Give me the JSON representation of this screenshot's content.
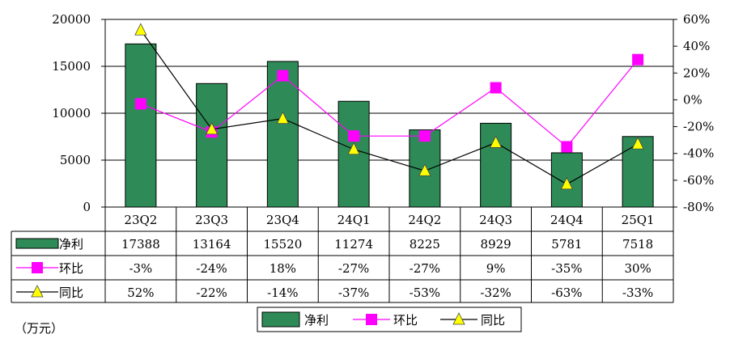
{
  "chart_data": {
    "type": "bar",
    "categories": [
      "23Q2",
      "23Q3",
      "23Q4",
      "24Q1",
      "24Q2",
      "24Q3",
      "24Q4",
      "25Q1"
    ],
    "y_left": {
      "min": 0,
      "max": 20000,
      "ticks": [
        "0",
        "5000",
        "10000",
        "15000",
        "20000"
      ]
    },
    "y_right": {
      "min": -80,
      "max": 60,
      "ticks": [
        "-80%",
        "-60%",
        "-40%",
        "-20%",
        "0%",
        "20%",
        "40%",
        "60%"
      ]
    },
    "series": [
      {
        "name": "净利",
        "type": "bar",
        "axis": "left",
        "color": "#2e8b57",
        "values": [
          17388,
          13164,
          15520,
          11274,
          8225,
          8929,
          5781,
          7518
        ],
        "labels": [
          "17388",
          "13164",
          "15520",
          "11274",
          "8225",
          "8929",
          "5781",
          "7518"
        ]
      },
      {
        "name": "环比",
        "type": "line",
        "axis": "right",
        "color": "#ff00ff",
        "marker": "square",
        "values": [
          -3,
          -24,
          18,
          -27,
          -27,
          9,
          -35,
          30
        ],
        "labels": [
          "-3%",
          "-24%",
          "18%",
          "-27%",
          "-27%",
          "9%",
          "-35%",
          "30%"
        ]
      },
      {
        "name": "同比",
        "type": "line",
        "axis": "right",
        "color": "#000000",
        "marker": "triangle",
        "marker_color": "#ffff00",
        "values": [
          52,
          -22,
          -14,
          -37,
          -53,
          -32,
          -63,
          -33
        ],
        "labels": [
          "52%",
          "-22%",
          "-14%",
          "-37%",
          "-53%",
          "-32%",
          "-63%",
          "-33%"
        ]
      }
    ],
    "legend": [
      "净利",
      "环比",
      "同比"
    ],
    "unit_note": "（万元）",
    "grid": true
  }
}
